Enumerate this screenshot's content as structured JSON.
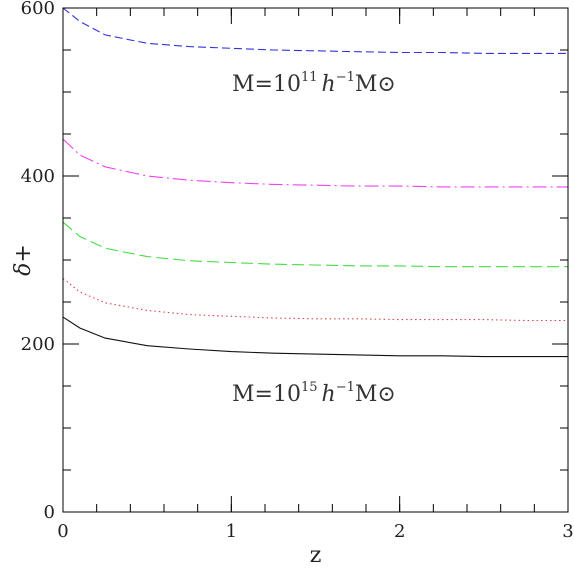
{
  "chart_data": {
    "type": "line",
    "title": "",
    "xlabel": "z",
    "ylabel": "δ+",
    "xlim": [
      0,
      3
    ],
    "ylim": [
      0,
      600
    ],
    "x_ticks": [
      "0",
      "1",
      "2",
      "3"
    ],
    "y_ticks": [
      "0",
      "200",
      "400",
      "600"
    ],
    "grid": false,
    "series": [
      {
        "color": "#3333dd",
        "dash": "dashed",
        "x": [
          0,
          0.1,
          0.25,
          0.5,
          0.75,
          1.0,
          1.25,
          1.5,
          1.75,
          2.0,
          2.25,
          2.5,
          2.75,
          3.0
        ],
        "y": [
          600,
          584,
          568,
          558,
          554,
          552,
          550,
          549,
          548,
          547,
          547,
          546,
          546,
          546
        ]
      },
      {
        "color": "#ee44ee",
        "dash": "dashdot",
        "x": [
          0,
          0.1,
          0.25,
          0.5,
          0.75,
          1.0,
          1.25,
          1.5,
          1.75,
          2.0,
          2.25,
          2.5,
          2.75,
          3.0
        ],
        "y": [
          444,
          425,
          411,
          400,
          395,
          392,
          390,
          389,
          388,
          388,
          387,
          387,
          387,
          387
        ]
      },
      {
        "color": "#44dd44",
        "dash": "longdash",
        "x": [
          0,
          0.1,
          0.25,
          0.5,
          0.75,
          1.0,
          1.25,
          1.5,
          1.75,
          2.0,
          2.25,
          2.5,
          2.75,
          3.0
        ],
        "y": [
          345,
          328,
          314,
          304,
          299,
          297,
          295,
          294,
          293,
          293,
          292,
          292,
          292,
          292
        ]
      },
      {
        "color": "#dd4444",
        "dash": "dotted",
        "x": [
          0,
          0.1,
          0.25,
          0.5,
          0.75,
          1.0,
          1.25,
          1.5,
          1.75,
          2.0,
          2.25,
          2.5,
          2.75,
          3.0
        ],
        "y": [
          278,
          262,
          249,
          240,
          235,
          233,
          231,
          230,
          230,
          229,
          229,
          229,
          228,
          228
        ]
      },
      {
        "color": "#111111",
        "dash": "solid",
        "x": [
          0,
          0.1,
          0.25,
          0.5,
          0.75,
          1.0,
          1.25,
          1.5,
          1.75,
          2.0,
          2.25,
          2.5,
          2.75,
          3.0
        ],
        "y": [
          232,
          219,
          207,
          198,
          194,
          191,
          189,
          188,
          187,
          186,
          186,
          185,
          185,
          185
        ]
      }
    ],
    "annotations": [
      {
        "prefix": "M=10",
        "exp": "11",
        "h": "h",
        "hexp": "−1",
        "suffix": "M⊙"
      },
      {
        "prefix": "M=10",
        "exp": "15",
        "h": "h",
        "hexp": "−1",
        "suffix": "M⊙"
      }
    ]
  }
}
